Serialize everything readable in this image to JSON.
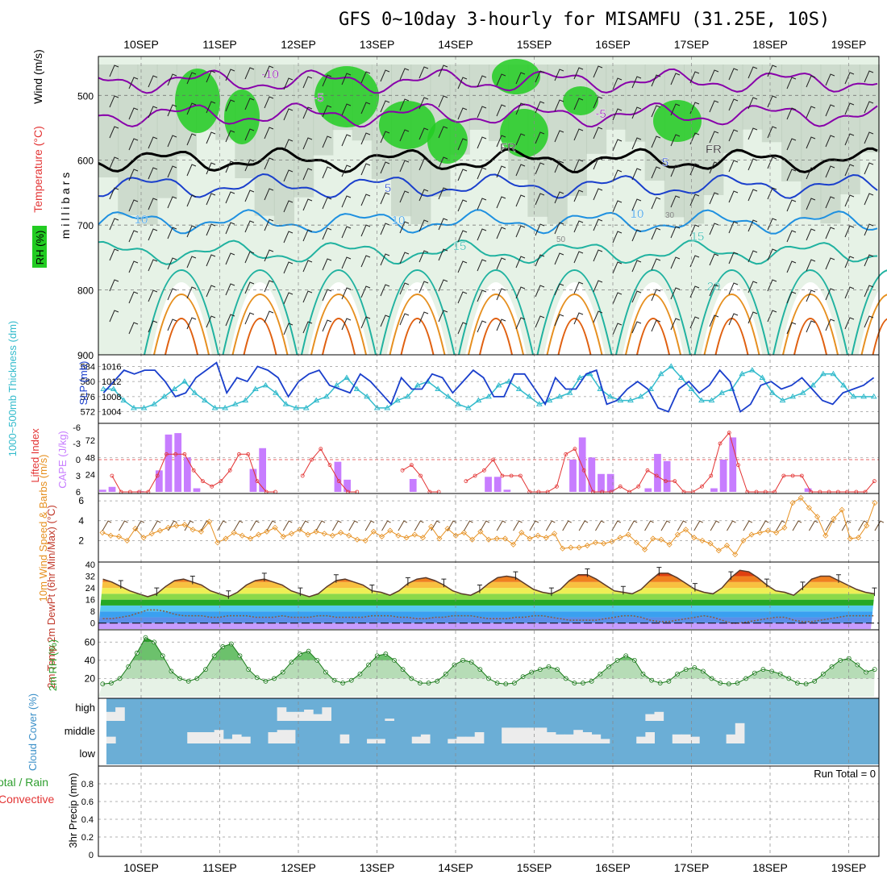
{
  "title": "GFS 0~10day 3-hourly for MISAMFU (31.25E, 10S)",
  "days": [
    "10SEP",
    "11SEP",
    "12SEP",
    "13SEP",
    "14SEP",
    "15SEP",
    "16SEP",
    "17SEP",
    "18SEP",
    "19SEP"
  ],
  "colors": {
    "frame": "#000000",
    "grid": "#999999",
    "rh_green": "#22cc22",
    "cloud_blue": "#6baed6",
    "slp": "#1a3fcc",
    "thickness": "#33bbcc",
    "cape": "#c77dff",
    "lifted": "#e33333",
    "wind": "#e69020",
    "barb": "#6b4a2a",
    "temp_hot": "#dd2200",
    "dewpt": "#8b5a3c",
    "rh2m": "#2e9e2e"
  },
  "chart_data": [
    {
      "id": "cross-section",
      "type": "heatmap",
      "ylabel": "m i l l i b a r s",
      "side_labels": [
        "Wind (m/s)",
        "Temperature (°C)",
        "RH (%)"
      ],
      "ylim": [
        900,
        440
      ],
      "yticks": [
        "500",
        "600",
        "700",
        "800",
        "900"
      ],
      "temp_contour_labels": [
        "-10",
        "-5",
        "FR",
        "FR",
        "-5",
        "5",
        "5",
        "10",
        "10",
        "10",
        "15",
        "15",
        "20"
      ],
      "rh_labels": [
        "30",
        "50"
      ]
    },
    {
      "id": "slp-thickness",
      "type": "line",
      "left_label": "1000~500mb Thickness (dm)",
      "right_label": "SLP (mb)",
      "left_ticks": [
        "584",
        "580",
        "576",
        "572"
      ],
      "right_ticks": [
        "1016",
        "1012",
        "1008",
        "1004"
      ],
      "series": [
        {
          "name": "SLP (mb)",
          "axis": "right",
          "values": [
            1009,
            1012,
            1015,
            1014,
            1015,
            1015,
            1012,
            1008,
            1009,
            1013,
            1015,
            1017,
            1009,
            1013,
            1012,
            1016,
            1015,
            1013,
            1008,
            1012,
            1014,
            1015,
            1011,
            1010,
            1009,
            1014,
            1012,
            1009,
            1006,
            1013,
            1010,
            1010,
            1014,
            1013,
            1009,
            1012,
            1015,
            1013,
            1008,
            1008,
            1014,
            1014,
            1010,
            1006,
            1013,
            1010,
            1010,
            1014,
            1015,
            1006,
            1007,
            1010,
            1012,
            1010,
            1005,
            1004,
            1010,
            1012,
            1009,
            1011,
            1015,
            1012,
            1004,
            1006,
            1011,
            1012,
            1010,
            1011,
            1013,
            1010,
            1007,
            1006,
            1009,
            1010,
            1011,
            1013
          ]
        },
        {
          "name": "1000~500mb Thickness (dm)",
          "axis": "left",
          "values": [
            578,
            578,
            575,
            573,
            573,
            574,
            576,
            578,
            580,
            577,
            575,
            573,
            573,
            574,
            575,
            578,
            579,
            577,
            574,
            573,
            573,
            575,
            576,
            579,
            581,
            578,
            576,
            573,
            573,
            575,
            576,
            579,
            580,
            578,
            576,
            574,
            573,
            575,
            576,
            579,
            580,
            578,
            576,
            574,
            575,
            576,
            577,
            581,
            582,
            578,
            576,
            575,
            575,
            576,
            578,
            582,
            584,
            581,
            578,
            575,
            575,
            577,
            578,
            582,
            583,
            581,
            577,
            575,
            576,
            577,
            579,
            582,
            582,
            579,
            576,
            576,
            576
          ]
        }
      ]
    },
    {
      "id": "cape-li",
      "type": "bar",
      "left_label": "Lifted Index",
      "right_label": "CAPE (J/kg)",
      "li_ticks": [
        "-6",
        "-3",
        "0",
        "3",
        "6"
      ],
      "cape_ticks": [
        "72",
        "48",
        "24"
      ],
      "series": [
        {
          "name": "CAPE (J/kg)",
          "values": [
            3,
            7,
            0,
            0,
            1,
            0,
            30,
            80,
            82,
            48,
            5,
            0,
            0,
            0,
            0,
            0,
            32,
            61,
            0,
            0,
            0,
            0,
            0,
            0,
            0,
            42,
            17,
            0,
            0,
            0,
            0,
            0,
            0,
            18,
            0,
            0,
            0,
            0,
            0,
            0,
            0,
            21,
            21,
            3,
            0,
            0,
            0,
            0,
            0,
            0,
            45,
            76,
            48,
            25,
            25,
            0,
            0,
            0,
            5,
            53,
            43,
            0,
            0,
            0,
            0,
            5,
            45,
            76,
            0,
            0,
            0,
            0,
            0,
            0,
            0,
            5,
            0,
            0,
            0,
            0,
            0,
            0,
            0
          ]
        },
        {
          "name": "Lifted Index",
          "values": [
            null,
            3,
            6,
            6,
            6,
            6,
            3,
            -1,
            -1,
            -1,
            2,
            4,
            5,
            4,
            2,
            -1,
            -1,
            4,
            6,
            6,
            null,
            null,
            3,
            0,
            -2,
            1,
            4,
            6,
            6,
            null,
            null,
            null,
            null,
            2,
            1,
            3,
            6,
            6,
            null,
            null,
            4,
            3,
            2,
            0,
            3,
            3,
            3,
            6,
            6,
            6,
            5,
            -1,
            -2,
            2,
            6,
            6,
            6,
            5,
            6,
            5,
            2,
            3,
            4,
            4,
            6,
            6,
            5,
            3,
            -3,
            -5,
            1,
            6,
            6,
            6,
            6,
            3,
            3,
            3,
            6,
            6,
            6,
            6,
            6,
            6,
            6,
            4
          ]
        }
      ]
    },
    {
      "id": "wind10m",
      "type": "line",
      "ylabel": "10m Wind Speed & Barbs (m/s)",
      "yticks": [
        "6",
        "4",
        "2"
      ],
      "ylim": [
        0,
        6.5
      ],
      "series": [
        {
          "name": "10m Wind Speed",
          "values": [
            2.8,
            2.5,
            2.4,
            2.0,
            3.2,
            2.3,
            2.7,
            3.0,
            3.3,
            3.5,
            3.6,
            3.1,
            2.9,
            3.9,
            1.8,
            2.2,
            2.8,
            2.5,
            2.2,
            2.6,
            2.9,
            3.3,
            2.4,
            2.7,
            3.1,
            2.6,
            2.9,
            2.7,
            2.5,
            2.8,
            2.5,
            2.1,
            2.0,
            2.9,
            2.4,
            3.0,
            2.5,
            2.3,
            2.6,
            2.3,
            3.4,
            2.2,
            3.2,
            2.5,
            2.8,
            2.1,
            2.9,
            2.1,
            2.2,
            2.2,
            1.6,
            2.8,
            2.2,
            2.5,
            2.3,
            2.7,
            1.2,
            1.3,
            1.3,
            1.5,
            1.8,
            1.7,
            1.9,
            2.3,
            2.6,
            1.8,
            1.1,
            2.2,
            2.1,
            1.6,
            2.6,
            3.1,
            2.3,
            2.0,
            1.7,
            1.0,
            1.5,
            0.6,
            2.0,
            2.6,
            2.8,
            3.0,
            2.8,
            3.3,
            5.8,
            6.3,
            5.3,
            4.4,
            2.5,
            4.2,
            5.1,
            2.2,
            2.3,
            3.5,
            5.8
          ]
        }
      ]
    },
    {
      "id": "temp2m",
      "type": "area",
      "ylabel": "2m Temp 2m DewPt (6hr Min/Max) (°C)",
      "yticks": [
        "40",
        "32",
        "24",
        "16",
        "8",
        "0"
      ],
      "ylim": [
        -4,
        40
      ],
      "series": [
        {
          "name": "2m Temp",
          "values": [
            30,
            28,
            25,
            22,
            20,
            18,
            20,
            25,
            29,
            30,
            28,
            26,
            22,
            20,
            18,
            21,
            26,
            29,
            30,
            28,
            26,
            22,
            20,
            18,
            20,
            25,
            29,
            30,
            28,
            26,
            22,
            21,
            19,
            22,
            27,
            30,
            31,
            29,
            26,
            22,
            20,
            19,
            22,
            27,
            31,
            32,
            31,
            27,
            23,
            21,
            20,
            23,
            29,
            33,
            33,
            30,
            26,
            22,
            21,
            20,
            23,
            29,
            34,
            34,
            31,
            27,
            23,
            21,
            20,
            24,
            31,
            36,
            35,
            31,
            26,
            22,
            21,
            19,
            24,
            30,
            32,
            32,
            29,
            26,
            23,
            21,
            20
          ]
        },
        {
          "name": "2m DewPt",
          "values": [
            3,
            3,
            4,
            5,
            7,
            9,
            9,
            8,
            6,
            5,
            5,
            5,
            4,
            4,
            5,
            5,
            5,
            4,
            4,
            4,
            5,
            4,
            4,
            4,
            5,
            5,
            4,
            4,
            4,
            4,
            5,
            5,
            5,
            4,
            4,
            3,
            3,
            4,
            4,
            5,
            5,
            5,
            4,
            3,
            3,
            3,
            4,
            4,
            5,
            5,
            4,
            3,
            2,
            2,
            2,
            2,
            3,
            4,
            5,
            5,
            4,
            2,
            1,
            1,
            2,
            3,
            4,
            5,
            4,
            2,
            0,
            0,
            1,
            2,
            3,
            4,
            4,
            2,
            1,
            1,
            2,
            3,
            4,
            5,
            5,
            5,
            5
          ]
        }
      ]
    },
    {
      "id": "rh2m",
      "type": "area",
      "ylabel": "2m RH (%)",
      "yticks": [
        "60",
        "40",
        "20"
      ],
      "ylim": [
        0,
        70
      ],
      "series": [
        {
          "name": "2m RH",
          "values": [
            14,
            15,
            20,
            33,
            48,
            65,
            60,
            45,
            28,
            20,
            17,
            20,
            30,
            45,
            55,
            58,
            45,
            30,
            21,
            17,
            20,
            27,
            38,
            47,
            50,
            40,
            27,
            18,
            15,
            18,
            25,
            35,
            45,
            47,
            40,
            30,
            20,
            15,
            15,
            17,
            25,
            35,
            40,
            38,
            30,
            20,
            15,
            14,
            15,
            22,
            27,
            30,
            33,
            30,
            20,
            15,
            15,
            17,
            25,
            33,
            40,
            45,
            40,
            25,
            18,
            15,
            17,
            25,
            30,
            32,
            28,
            20,
            15,
            14,
            15,
            20,
            26,
            30,
            28,
            25,
            20,
            15,
            14,
            17,
            25,
            33,
            40,
            42,
            35,
            27,
            30
          ]
        }
      ]
    },
    {
      "id": "cloud-cover",
      "type": "bar",
      "ylabel": "Cloud Cover (%)",
      "yticks": [
        "high",
        "middle",
        "low"
      ],
      "series": [
        {
          "name": "high",
          "values": [
            0.4,
            0.6,
            0.0,
            0.0,
            0.0,
            0.0,
            0.0,
            0.0,
            0.0,
            0.0,
            0.0,
            0.0,
            0.0,
            0.0,
            0.0,
            0.0,
            0.0,
            0.0,
            0.0,
            0.6,
            0.4,
            0.4,
            0.5,
            0.3,
            0.6,
            0.0,
            0.0,
            0.0,
            0.0,
            0.0,
            0.0,
            0.1,
            0.0,
            0.0,
            0.0,
            0.0,
            0.0,
            0.0,
            0.0,
            0.0,
            0.0,
            0.0,
            0.0,
            0.0,
            0.0,
            0.0,
            0.0,
            0.0,
            0.0,
            0.0,
            0.0,
            0.0,
            0.0,
            0.0,
            0.0,
            0.0,
            0.0,
            0.0,
            0.0,
            0.0,
            0.3,
            0.4,
            0.0,
            0.0,
            0.0,
            0.0,
            0.0,
            0.0,
            0.0,
            0.0,
            0.0,
            0.0,
            0.0,
            0.0,
            0.0,
            0.0,
            0.0,
            0.0,
            0.0,
            0.0,
            0.0,
            0.0,
            0.0,
            0.0,
            0.0,
            0.0
          ]
        },
        {
          "name": "middle",
          "values": [
            0.3,
            0.0,
            0.0,
            0.0,
            0.0,
            0.0,
            0.0,
            0.0,
            0.0,
            0.5,
            0.5,
            0.5,
            0.6,
            0.2,
            0.4,
            0.3,
            0.0,
            0.0,
            0.5,
            0.6,
            0.6,
            0.0,
            0.0,
            0.0,
            0.0,
            0.0,
            0.4,
            0.0,
            0.0,
            0.2,
            0.2,
            0.0,
            0.0,
            0.0,
            0.3,
            0.4,
            0.0,
            0.0,
            0.2,
            0.3,
            0.3,
            0.5,
            0.0,
            0.0,
            0.7,
            0.7,
            0.7,
            0.7,
            0.7,
            0.5,
            0.4,
            0.4,
            0.6,
            0.5,
            0.4,
            0.2,
            0.0,
            0.0,
            0.0,
            0.3,
            0.5,
            0.0,
            0.0,
            0.4,
            0.4,
            0.3,
            0.0,
            0.0,
            0.0,
            0.4,
            0.9,
            0.0,
            0.0,
            0.0,
            0.0,
            0.0,
            0.0,
            0.0,
            0.0,
            0.0,
            0.0,
            0.0,
            0.0,
            0.0,
            0.0,
            0.0
          ]
        },
        {
          "name": "low",
          "values": [
            0.0,
            0.0,
            0.0,
            0.0,
            0.0,
            0.0,
            0.0,
            0.0,
            0.0,
            0.0,
            0.0,
            0.0,
            0.0,
            0.0,
            0.0,
            0.0,
            0.0,
            0.0,
            0.0,
            0.0,
            0.0,
            0.0,
            0.0,
            0.0,
            0.0,
            0.0,
            0.0,
            0.0,
            0.0,
            0.0,
            0.0,
            0.0,
            0.0,
            0.0,
            0.0,
            0.0,
            0.0,
            0.0,
            0.0,
            0.0,
            0.0,
            0.0,
            0.0,
            0.0,
            0.0,
            0.0,
            0.0,
            0.0,
            0.0,
            0.0,
            0.0,
            0.0,
            0.0,
            0.0,
            0.0,
            0.0,
            0.0,
            0.0,
            0.0,
            0.0,
            0.0,
            0.0,
            0.0,
            0.0,
            0.0,
            0.0,
            0.0,
            0.0,
            0.0,
            0.0,
            0.0,
            0.0,
            0.0,
            0.0,
            0.0,
            0.0,
            0.0,
            0.0,
            0.0,
            0.0,
            0.0,
            0.0,
            0.0,
            0.0,
            0.0,
            0.0
          ]
        }
      ]
    },
    {
      "id": "precip",
      "type": "bar",
      "ylabel": "3hr Precip (mm)",
      "left_label_1": "Total / Rain",
      "left_label_2": "Convective",
      "yticks": [
        "0.8",
        "0.6",
        "0.4",
        "0.2",
        "0"
      ],
      "ylim": [
        0,
        1
      ],
      "run_total": "Run Total = 0",
      "series": [
        {
          "name": "3hr Precip",
          "values": []
        }
      ]
    }
  ]
}
